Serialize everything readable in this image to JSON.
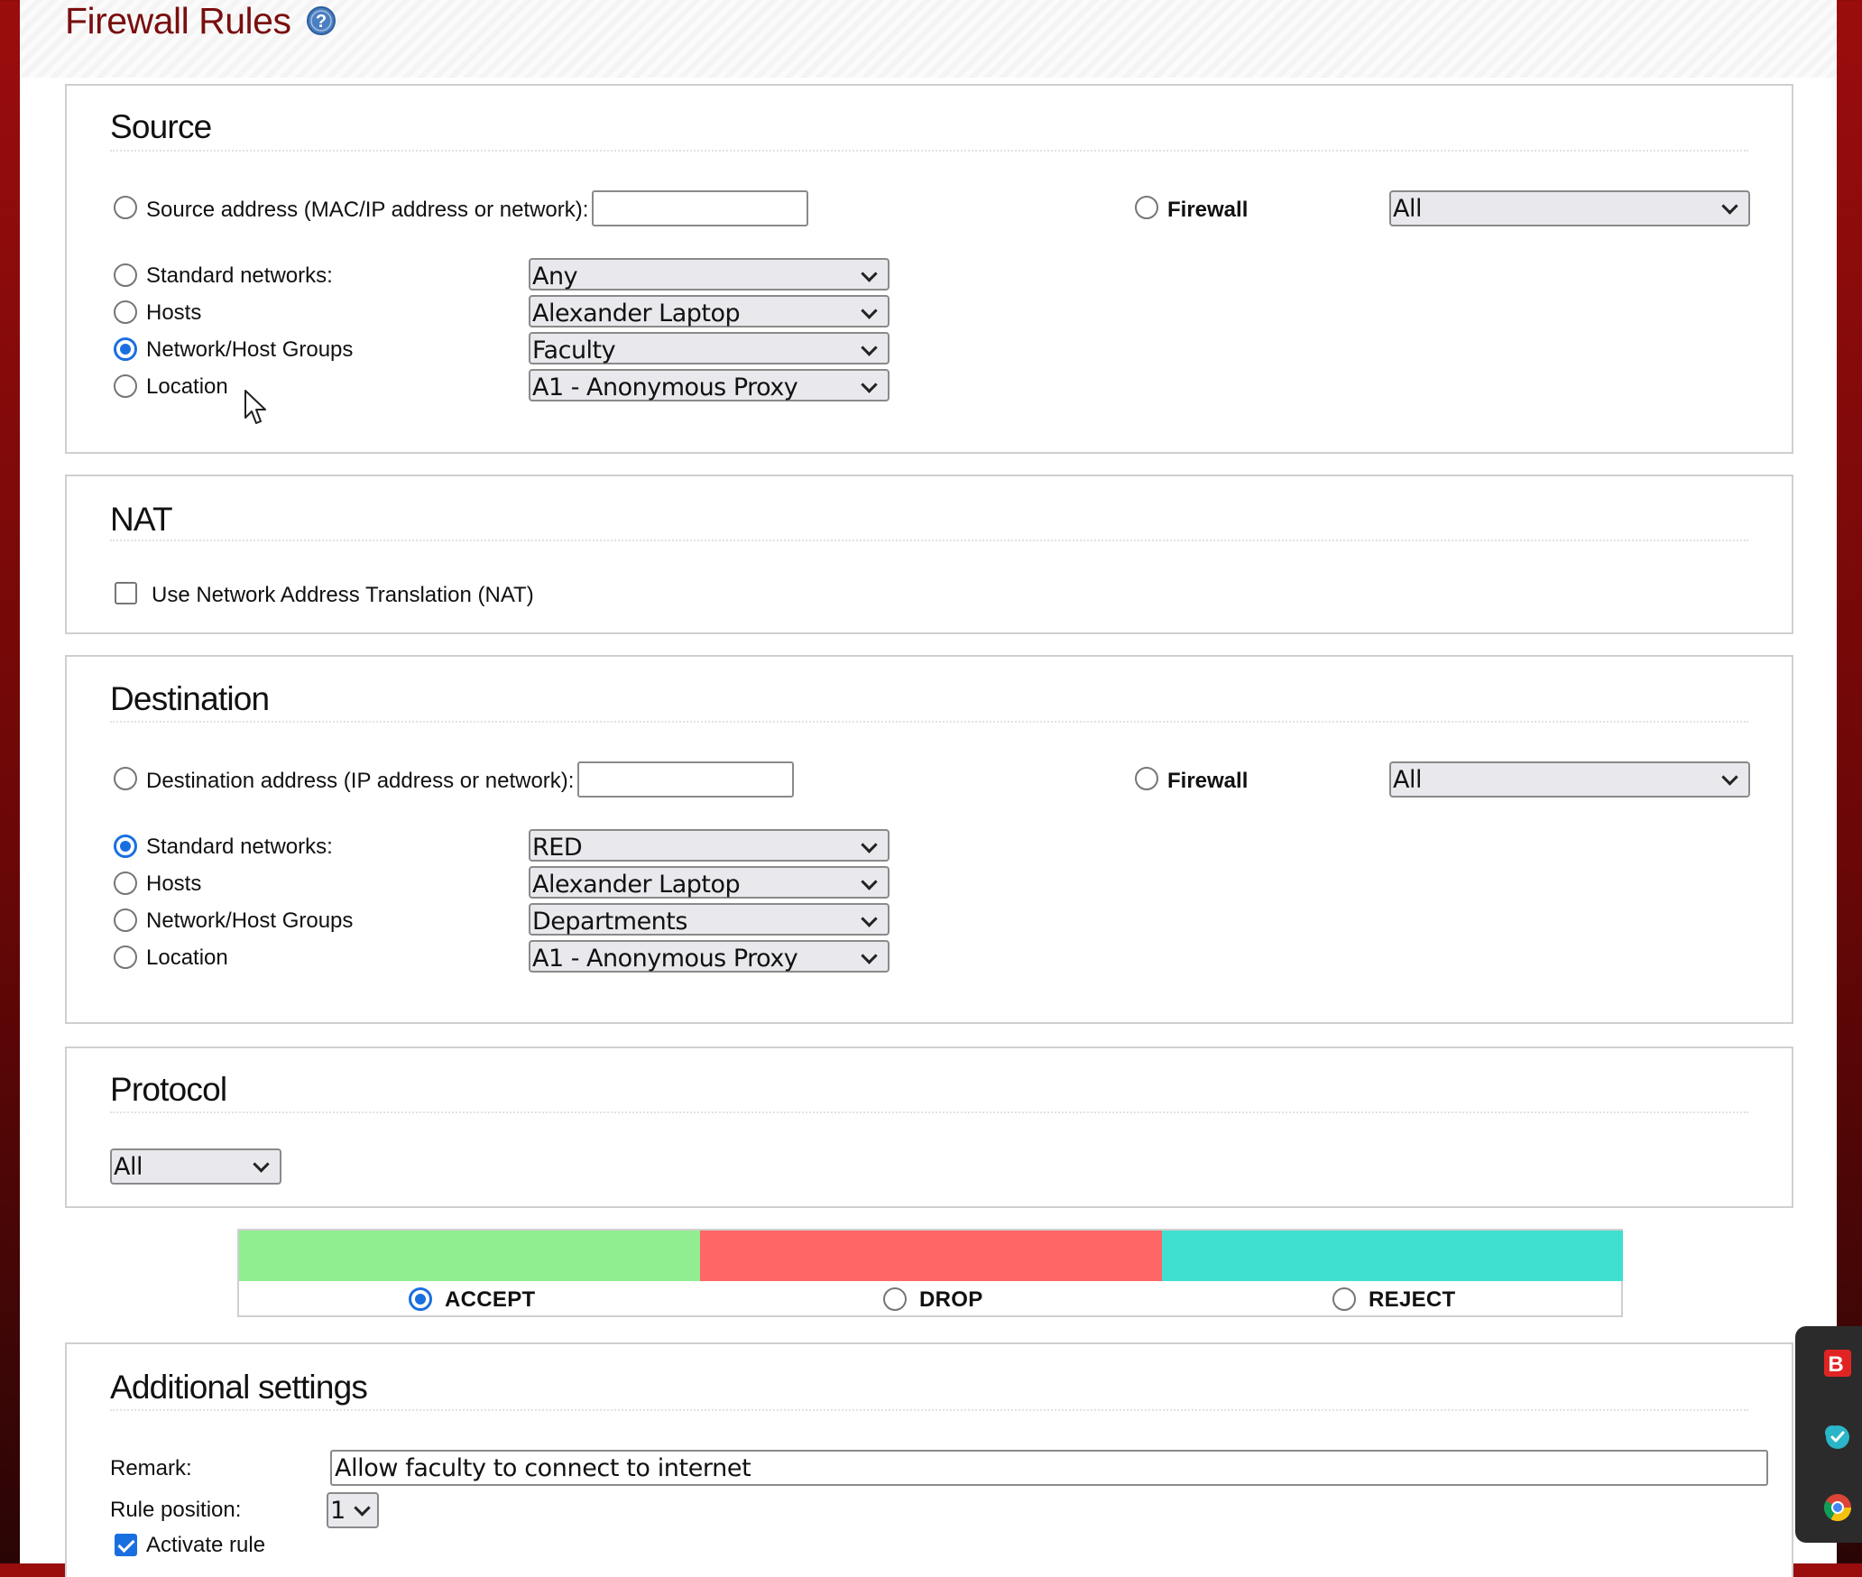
{
  "page": {
    "title": "Firewall Rules"
  },
  "source": {
    "title": "Source",
    "address_label": "Source address (MAC/IP address or network):",
    "address_value": "",
    "firewall_label": "Firewall",
    "firewall_select": "All",
    "rows": [
      {
        "label": "Standard networks:",
        "value": "Any",
        "checked": false
      },
      {
        "label": "Hosts",
        "value": "Alexander Laptop",
        "checked": false
      },
      {
        "label": "Network/Host Groups",
        "value": "Faculty",
        "checked": true
      },
      {
        "label": "Location",
        "value": "A1 - Anonymous Proxy",
        "checked": false
      }
    ]
  },
  "nat": {
    "title": "NAT",
    "checkbox_label": "Use Network Address Translation (NAT)",
    "checked": false
  },
  "destination": {
    "title": "Destination",
    "address_label": "Destination address (IP address or network):",
    "address_value": "",
    "firewall_label": "Firewall",
    "firewall_select": "All",
    "rows": [
      {
        "label": "Standard networks:",
        "value": "RED",
        "checked": true
      },
      {
        "label": "Hosts",
        "value": "Alexander Laptop",
        "checked": false
      },
      {
        "label": "Network/Host Groups",
        "value": "Departments",
        "checked": false
      },
      {
        "label": "Location",
        "value": "A1 - Anonymous Proxy",
        "checked": false
      }
    ]
  },
  "protocol": {
    "title": "Protocol",
    "value": "All"
  },
  "actions": {
    "items": [
      {
        "label": "ACCEPT",
        "color": "#90ee90",
        "checked": true
      },
      {
        "label": "DROP",
        "color": "#ff6666",
        "checked": false
      },
      {
        "label": "REJECT",
        "color": "#40e0d0",
        "checked": false
      }
    ]
  },
  "additional": {
    "title": "Additional settings",
    "remark_label": "Remark:",
    "remark_value": "Allow faculty to connect to internet",
    "position_label": "Rule position:",
    "position_value": "1",
    "activate_label": "Activate rule",
    "activate_checked": true
  },
  "colors": {
    "accent": "#1a6fe0",
    "title_color": "#7a0e0e",
    "frame": "#9b0d0d"
  },
  "icons": {
    "help": "help-icon",
    "cursor": "mouse-pointer-icon",
    "tray": [
      "b-red-app-icon",
      "cloud-check-icon",
      "chrome-icon"
    ]
  }
}
